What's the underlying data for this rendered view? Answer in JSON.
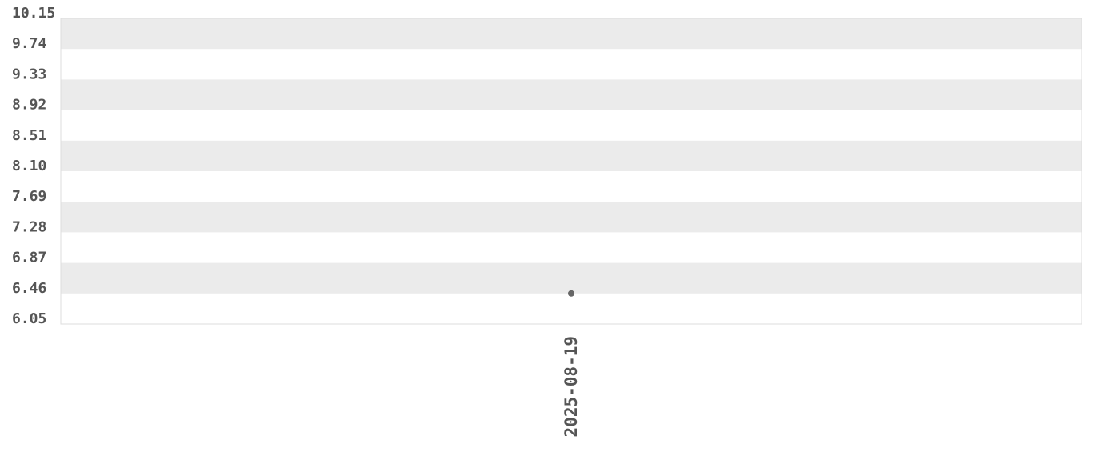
{
  "chart_data": {
    "type": "scatter",
    "title": "",
    "xlabel": "",
    "ylabel": "",
    "categories": [
      "2025-08-19"
    ],
    "series": [
      {
        "x": [
          "2025-08-19"
        ],
        "values": [
          6.46
        ]
      }
    ],
    "ylim": [
      6.05,
      10.15
    ],
    "yticks": [
      "10.15",
      "9.74",
      "9.33",
      "8.92",
      "8.51",
      "8.10",
      "7.69",
      "7.28",
      "6.87",
      "6.46",
      "6.05"
    ],
    "grid": "alternating horizontal bands",
    "legend": "none",
    "colors": {
      "band": "#ebebeb",
      "point": "#666666",
      "text": "#555555",
      "border": "#dddddd"
    }
  }
}
